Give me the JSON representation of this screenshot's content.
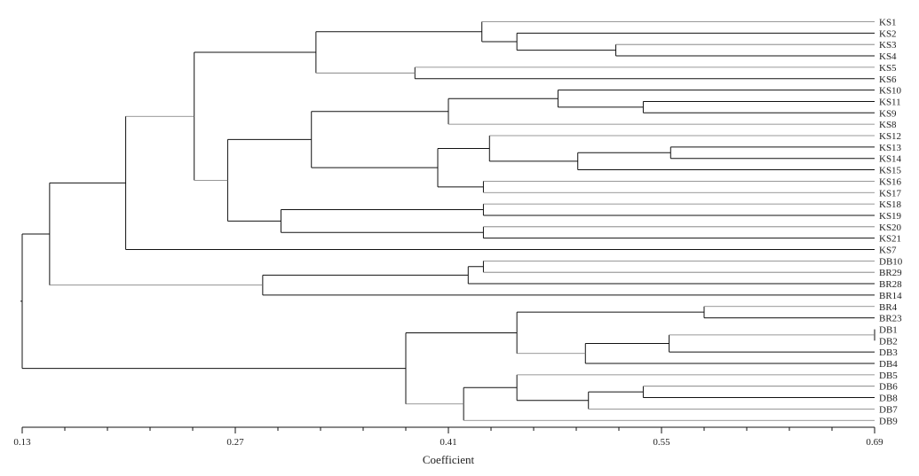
{
  "chart_data": {
    "type": "dendrogram",
    "title": "",
    "xlabel": "Coefficient",
    "x_range": [
      0.13,
      0.69
    ],
    "major_ticks": [
      0.13,
      0.27,
      0.41,
      0.55,
      0.69
    ],
    "major_tick_labels": [
      "0.13",
      "0.27",
      "0.41",
      "0.55",
      "0.69"
    ],
    "minor_tick_step": 0.028,
    "leaves": [
      "KS1",
      "KS2",
      "KS3",
      "KS4",
      "KS5",
      "KS6",
      "KS10",
      "KS11",
      "KS9",
      "KS8",
      "KS12",
      "KS13",
      "KS14",
      "KS15",
      "KS16",
      "KS17",
      "KS18",
      "KS19",
      "KS20",
      "KS21",
      "KS7",
      "DB10",
      "BR29",
      "BR28",
      "BR14",
      "BR4",
      "BR23",
      "DB1",
      "DB2",
      "DB3",
      "DB4",
      "DB5",
      "DB6",
      "DB8",
      "DB7",
      "DB9"
    ],
    "merges": [
      {
        "id": "n_db12",
        "children": [
          "DB1",
          "DB2"
        ],
        "coef": 0.69
      },
      {
        "id": "n_ks34",
        "children": [
          "KS3",
          "KS4"
        ],
        "coef": 0.52
      },
      {
        "id": "n_ks234",
        "children": [
          "KS2",
          "n_ks34"
        ],
        "coef": 0.455
      },
      {
        "id": "n_ks1234",
        "children": [
          "KS1",
          "n_ks234"
        ],
        "coef": 0.432
      },
      {
        "id": "n_ks56",
        "children": [
          "KS5",
          "KS6"
        ],
        "coef": 0.388
      },
      {
        "id": "n_ks1_6",
        "children": [
          "n_ks1234",
          "n_ks56"
        ],
        "coef": 0.323
      },
      {
        "id": "n_ks119",
        "children": [
          "KS11",
          "KS9"
        ],
        "coef": 0.538
      },
      {
        "id": "n_ks10_11_9",
        "children": [
          "KS10",
          "n_ks119"
        ],
        "coef": 0.482
      },
      {
        "id": "n_ks10_8",
        "children": [
          "n_ks10_11_9",
          "KS8"
        ],
        "coef": 0.41
      },
      {
        "id": "n_ks1314",
        "children": [
          "KS13",
          "KS14"
        ],
        "coef": 0.556
      },
      {
        "id": "n_ks13_15",
        "children": [
          "n_ks1314",
          "KS15"
        ],
        "coef": 0.495
      },
      {
        "id": "n_ks12_15",
        "children": [
          "KS12",
          "n_ks13_15"
        ],
        "coef": 0.437
      },
      {
        "id": "n_ks1617",
        "children": [
          "KS16",
          "KS17"
        ],
        "coef": 0.433
      },
      {
        "id": "n_ks12_17",
        "children": [
          "n_ks12_15",
          "n_ks1617"
        ],
        "coef": 0.403
      },
      {
        "id": "n_ks10_17",
        "children": [
          "n_ks10_8",
          "n_ks12_17"
        ],
        "coef": 0.32
      },
      {
        "id": "n_ks1819",
        "children": [
          "KS18",
          "KS19"
        ],
        "coef": 0.433
      },
      {
        "id": "n_ks2021",
        "children": [
          "KS20",
          "KS21"
        ],
        "coef": 0.433
      },
      {
        "id": "n_ks18_21",
        "children": [
          "n_ks1819",
          "n_ks2021"
        ],
        "coef": 0.3
      },
      {
        "id": "n_ks10_21",
        "children": [
          "n_ks10_17",
          "n_ks18_21"
        ],
        "coef": 0.265
      },
      {
        "id": "n_ks_main",
        "children": [
          "n_ks1_6",
          "n_ks10_21"
        ],
        "coef": 0.243
      },
      {
        "id": "n_ks_all",
        "children": [
          "n_ks_main",
          "KS7"
        ],
        "coef": 0.198
      },
      {
        "id": "n_db10br29",
        "children": [
          "DB10",
          "BR29"
        ],
        "coef": 0.433
      },
      {
        "id": "n_br28",
        "children": [
          "n_db10br29",
          "BR28"
        ],
        "coef": 0.423
      },
      {
        "id": "n_br14",
        "children": [
          "n_br28",
          "BR14"
        ],
        "coef": 0.288
      },
      {
        "id": "n_ks_br",
        "children": [
          "n_ks_all",
          "n_br14"
        ],
        "coef": 0.148
      },
      {
        "id": "n_br423",
        "children": [
          "BR4",
          "BR23"
        ],
        "coef": 0.578
      },
      {
        "id": "n_db123",
        "children": [
          "n_db12",
          "DB3"
        ],
        "coef": 0.555
      },
      {
        "id": "n_db1234",
        "children": [
          "n_db123",
          "DB4"
        ],
        "coef": 0.5
      },
      {
        "id": "n_br_db4",
        "children": [
          "n_br423",
          "n_db1234"
        ],
        "coef": 0.455
      },
      {
        "id": "n_db68",
        "children": [
          "DB6",
          "DB8"
        ],
        "coef": 0.538
      },
      {
        "id": "n_db687",
        "children": [
          "n_db68",
          "DB7"
        ],
        "coef": 0.502
      },
      {
        "id": "n_db5_7",
        "children": [
          "DB5",
          "n_db687"
        ],
        "coef": 0.455
      },
      {
        "id": "n_db5_9",
        "children": [
          "n_db5_7",
          "DB9"
        ],
        "coef": 0.42
      },
      {
        "id": "n_db_all",
        "children": [
          "n_br_db4",
          "n_db5_9"
        ],
        "coef": 0.382
      },
      {
        "id": "root",
        "children": [
          "n_ks_br",
          "n_db_all"
        ],
        "coef": 0.13
      }
    ],
    "light_edges": [
      "KS1",
      "KS5",
      "KS16",
      "KS17",
      "KS18",
      "KS20",
      "KS8",
      "KS12",
      "n_ks10_21",
      "DB10",
      "BR29",
      "n_ks_main",
      "n_br14",
      "n_db5_9",
      "n_db1234",
      "n_db12",
      "KS3",
      "DB5",
      "DB6",
      "DB7",
      "DB9",
      "BR4",
      "n_ks56"
    ]
  }
}
